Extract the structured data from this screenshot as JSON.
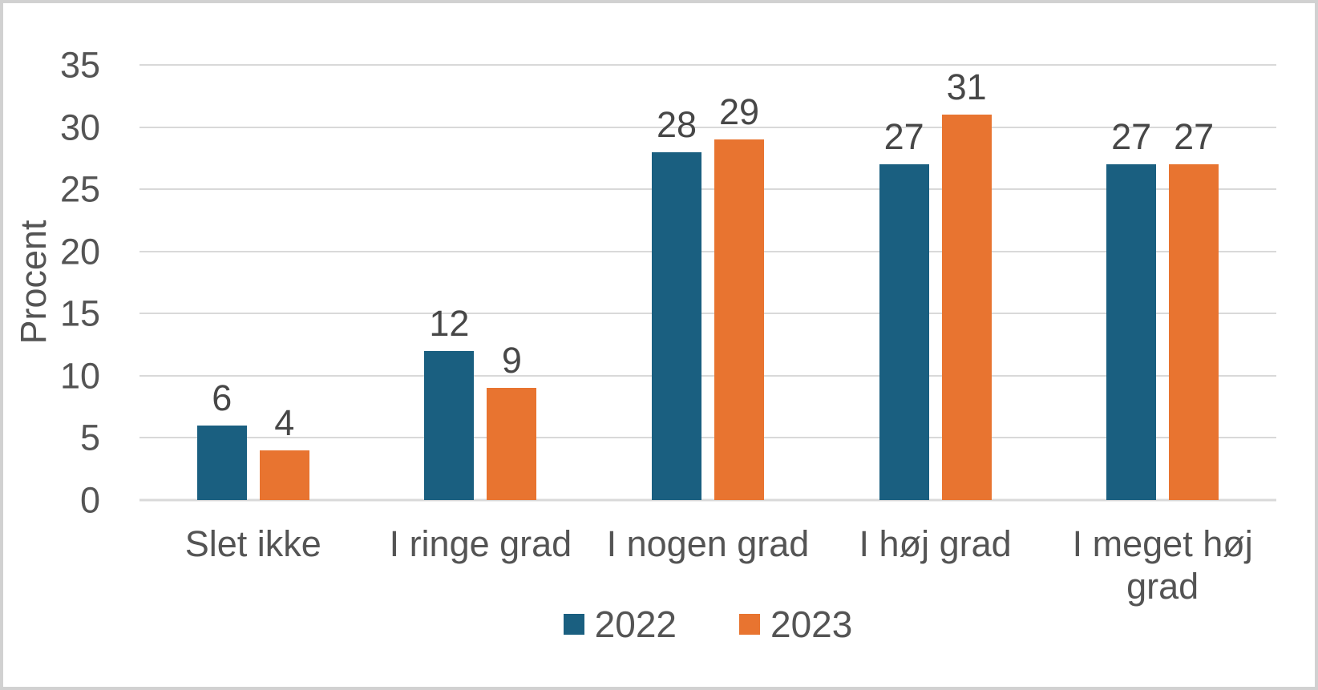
{
  "chart_data": {
    "type": "bar",
    "categories": [
      "Slet ikke",
      "I ringe grad",
      "I nogen grad",
      "I høj grad",
      "I meget høj grad"
    ],
    "series": [
      {
        "name": "2022",
        "color": "#1A5F80",
        "values": [
          6,
          12,
          28,
          27,
          27
        ]
      },
      {
        "name": "2023",
        "color": "#E87430",
        "values": [
          4,
          9,
          29,
          31,
          27
        ]
      }
    ],
    "title": "",
    "xlabel": "",
    "ylabel": "Procent",
    "ylim": [
      0,
      35
    ],
    "yticks": [
      0,
      5,
      10,
      15,
      20,
      25,
      30,
      35
    ],
    "grid": true,
    "data_labels": true,
    "legend_position": "bottom"
  },
  "colors": {
    "text": "#545454",
    "data_label_text": "#474747",
    "gridline": "#d9d9d9",
    "frame_border": "#d1d1d1",
    "background": "#ffffff",
    "series_2022": "#1A5F80",
    "series_2023": "#E87430"
  }
}
